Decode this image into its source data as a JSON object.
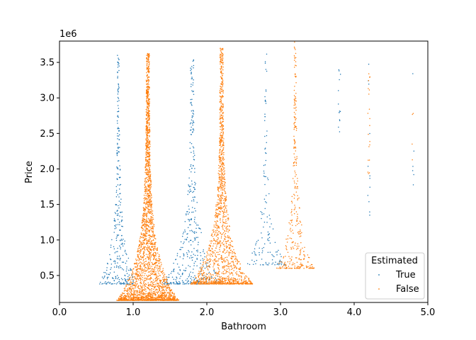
{
  "chart_data": {
    "type": "scatter",
    "xlabel": "Bathroom",
    "ylabel": "Price",
    "y_offset_label": "1e6",
    "xlim": [
      0.0,
      5.0
    ],
    "ylim": [
      120000,
      3800000
    ],
    "x_ticks": [
      "0.0",
      "1.0",
      "2.0",
      "3.0",
      "4.0",
      "5.0"
    ],
    "x_tick_values": [
      0,
      1,
      2,
      3,
      4,
      5
    ],
    "y_ticks": [
      "0.5",
      "1.0",
      "1.5",
      "2.0",
      "2.5",
      "3.0",
      "3.5"
    ],
    "y_tick_values": [
      500000,
      1000000,
      1500000,
      2000000,
      2500000,
      3000000,
      3500000
    ],
    "grid": false,
    "legend": {
      "title": "Estimated",
      "placement": "lower-right"
    },
    "series": [
      {
        "name": "True",
        "color": "#1f77b4",
        "groups": [
          {
            "x": 0.8,
            "y_min": 380000,
            "y_max": 3600000,
            "count": 320
          },
          {
            "x": 1.8,
            "y_min": 380000,
            "y_max": 3600000,
            "count": 420
          },
          {
            "x": 2.8,
            "y_min": 650000,
            "y_max": 3620000,
            "count": 130
          },
          {
            "x": 3.8,
            "y_min": 2500000,
            "y_max": 3700000,
            "count": 14
          },
          {
            "x": 4.2,
            "y_min": 1300000,
            "y_max": 3700000,
            "count": 12
          },
          {
            "x": 4.8,
            "y_min": 1750000,
            "y_max": 3700000,
            "count": 6
          }
        ]
      },
      {
        "name": "False",
        "color": "#ff7f0e",
        "groups": [
          {
            "x": 1.2,
            "y_min": 150000,
            "y_max": 3630000,
            "count": 2600
          },
          {
            "x": 2.2,
            "y_min": 380000,
            "y_max": 3700000,
            "count": 1500
          },
          {
            "x": 3.2,
            "y_min": 600000,
            "y_max": 3800000,
            "count": 320
          },
          {
            "x": 4.2,
            "y_min": 1600000,
            "y_max": 3350000,
            "count": 20
          },
          {
            "x": 4.8,
            "y_min": 1750000,
            "y_max": 3230000,
            "count": 4
          }
        ]
      }
    ]
  }
}
